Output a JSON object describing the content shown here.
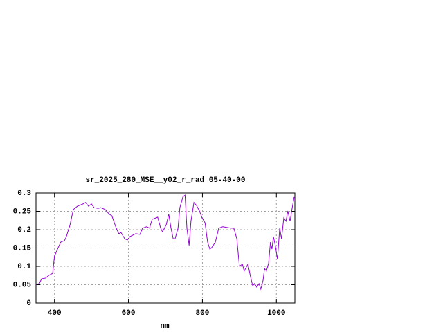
{
  "chart_data": {
    "type": "line",
    "title": "sr_2025_280_MSE__y02_r_rad 05-40-00",
    "x_label": "nm",
    "xlim": [
      350,
      1050
    ],
    "xticks": [
      400,
      600,
      800,
      1000
    ],
    "ylim": [
      0,
      0.3
    ],
    "yticks": [
      0,
      0.05,
      0.1,
      0.15,
      0.2,
      0.25,
      0.3
    ],
    "grid": true,
    "series": [
      {
        "color": "#9400d3",
        "x": [
          350,
          359,
          365,
          376,
          384,
          395,
          400,
          410,
          417,
          427,
          432,
          442,
          451,
          462,
          477,
          484,
          492,
          500,
          507,
          518,
          525,
          537,
          548,
          555,
          567,
          574,
          580,
          590,
          597,
          604,
          620,
          631,
          638,
          649,
          657,
          664,
          679,
          687,
          692,
          702,
          709,
          715,
          721,
          726,
          734,
          739,
          747,
          753,
          758,
          764,
          769,
          777,
          784,
          792,
          799,
          807,
          814,
          820,
          825,
          835,
          844,
          855,
          867,
          878,
          885,
          893,
          900,
          908,
          913,
          923,
          930,
          936,
          941,
          947,
          953,
          958,
          964,
          968,
          973,
          979,
          984,
          988,
          992,
          997,
          1003,
          1009,
          1014,
          1020,
          1026,
          1031,
          1037,
          1042,
          1048
        ],
        "values": [
          0.051,
          0.053,
          0.066,
          0.068,
          0.075,
          0.081,
          0.128,
          0.151,
          0.166,
          0.17,
          0.181,
          0.213,
          0.255,
          0.264,
          0.27,
          0.274,
          0.264,
          0.27,
          0.26,
          0.258,
          0.26,
          0.255,
          0.242,
          0.238,
          0.204,
          0.189,
          0.192,
          0.175,
          0.172,
          0.181,
          0.189,
          0.187,
          0.204,
          0.208,
          0.204,
          0.228,
          0.234,
          0.204,
          0.194,
          0.213,
          0.242,
          0.204,
          0.175,
          0.175,
          0.204,
          0.26,
          0.289,
          0.294,
          0.204,
          0.157,
          0.223,
          0.274,
          0.266,
          0.251,
          0.232,
          0.219,
          0.166,
          0.147,
          0.151,
          0.166,
          0.204,
          0.208,
          0.206,
          0.204,
          0.204,
          0.175,
          0.1,
          0.106,
          0.087,
          0.106,
          0.072,
          0.047,
          0.053,
          0.043,
          0.053,
          0.038,
          0.062,
          0.094,
          0.087,
          0.109,
          0.166,
          0.147,
          0.181,
          0.157,
          0.119,
          0.204,
          0.175,
          0.232,
          0.223,
          0.251,
          0.223,
          0.255,
          0.289
        ]
      }
    ]
  }
}
